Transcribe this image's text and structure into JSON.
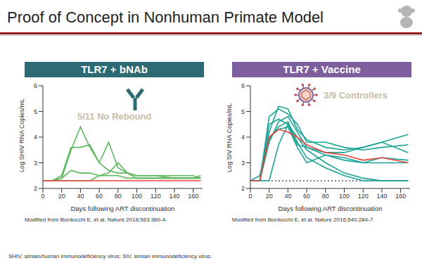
{
  "title": "Proof of Concept in Nonhuman Primate Model",
  "footnote": "SHIV, simian/human immunodeficiency virus; SIV, simian immunodeficiency virus.",
  "chart_data": [
    {
      "type": "line",
      "title": "TLR7 + bNAb",
      "annotation": "5/11 No Rebound",
      "source": "Modified from Borducchi E, et al. Nature 2018;563:360-4.",
      "x_label": "Days following ART discontinuation",
      "y_label": "Log SHIV RNA Copies/mL",
      "x": [
        0,
        10,
        20,
        30,
        40,
        50,
        60,
        70,
        80,
        90,
        100,
        120,
        140,
        160,
        168
      ],
      "xlim": [
        0,
        170
      ],
      "xticks": [
        0,
        20,
        40,
        60,
        80,
        100,
        120,
        140,
        160
      ],
      "ylim": [
        2,
        6
      ],
      "yticks": [
        2,
        3,
        4,
        5,
        6
      ],
      "series": [
        {
          "color": "#5cb85c",
          "values": [
            2.3,
            2.3,
            2.4,
            3.5,
            4.4,
            3.6,
            3.0,
            2.7,
            2.6,
            2.6,
            2.5,
            2.5,
            2.5,
            2.5,
            2.4
          ]
        },
        {
          "color": "#5cb85c",
          "values": [
            2.3,
            2.3,
            2.5,
            3.6,
            3.6,
            3.7,
            3.0,
            3.8,
            2.8,
            2.6,
            2.5,
            2.5,
            2.4,
            2.4,
            2.5
          ]
        },
        {
          "color": "#5cb85c",
          "values": [
            2.3,
            2.3,
            2.3,
            2.3,
            2.3,
            2.3,
            2.5,
            2.6,
            3.0,
            2.6,
            2.4,
            2.4,
            2.4,
            2.4,
            2.4
          ]
        },
        {
          "color": "#5cb85c",
          "values": [
            2.3,
            2.3,
            2.4,
            2.7,
            2.6,
            2.6,
            2.5,
            2.5,
            2.5,
            2.4,
            2.4,
            2.4,
            2.4,
            2.4,
            2.4
          ]
        },
        {
          "color": "#e8433b",
          "values": [
            2.3,
            2.3,
            2.3,
            2.3,
            2.3,
            2.3,
            2.3,
            2.3,
            2.3,
            2.3,
            2.3,
            2.3,
            2.3,
            2.3,
            2.3
          ]
        }
      ]
    },
    {
      "type": "line",
      "title": "TLR7 + Vaccine",
      "annotation": "3/9 Controllers",
      "source": "Modified from Borducchi E, et al. Nature 2016;540:284-7.",
      "x_label": "Days following ART discontinuation",
      "y_label": "Log SIV RNA Copies/mL",
      "x": [
        0,
        10,
        20,
        30,
        40,
        50,
        60,
        80,
        100,
        120,
        140,
        168
      ],
      "xlim": [
        0,
        170
      ],
      "xticks": [
        0,
        20,
        40,
        60,
        80,
        100,
        120,
        140,
        160
      ],
      "ylim": [
        2,
        6
      ],
      "yticks": [
        2,
        3,
        4,
        5,
        6
      ],
      "series": [
        {
          "color": "#333333",
          "line_style": "dotted",
          "values": [
            2.3,
            2.3,
            2.3,
            2.3,
            2.3,
            2.3,
            2.3,
            2.3,
            2.3,
            2.3,
            2.3,
            2.3
          ]
        },
        {
          "color": "#1aa396",
          "values": [
            2.3,
            2.3,
            4.2,
            5.2,
            5.1,
            4.3,
            3.9,
            3.6,
            3.5,
            3.6,
            3.8,
            4.1
          ]
        },
        {
          "color": "#1aa396",
          "values": [
            2.3,
            2.3,
            4.8,
            5.1,
            4.9,
            4.5,
            3.8,
            3.8,
            3.6,
            3.5,
            3.6,
            3.7
          ]
        },
        {
          "color": "#1aa396",
          "values": [
            2.3,
            2.3,
            3.8,
            4.6,
            4.8,
            4.2,
            3.6,
            3.3,
            3.2,
            3.0,
            3.2,
            3.1
          ]
        },
        {
          "color": "#1aa396",
          "values": [
            2.3,
            2.3,
            4.5,
            4.7,
            4.5,
            4.0,
            3.5,
            3.0,
            2.6,
            2.4,
            2.3,
            2.3
          ]
        },
        {
          "color": "#1aa396",
          "values": [
            2.3,
            2.3,
            3.9,
            4.4,
            4.6,
            3.8,
            3.2,
            2.8,
            2.5,
            2.3,
            2.3,
            2.3
          ]
        },
        {
          "color": "#1aa396",
          "values": [
            2.3,
            2.5,
            4.0,
            4.3,
            4.4,
            3.6,
            3.0,
            3.3,
            3.1,
            3.0,
            3.0,
            3.0
          ]
        },
        {
          "color": "#1aa396",
          "values": [
            2.3,
            2.3,
            2.3,
            3.7,
            4.5,
            3.7,
            3.6,
            3.4,
            3.4,
            3.6,
            3.8,
            3.4
          ]
        },
        {
          "color": "#e8433b",
          "values": [
            2.3,
            2.3,
            4.0,
            4.3,
            4.2,
            4.0,
            3.7,
            3.4,
            3.3,
            3.1,
            3.2,
            3.0
          ]
        }
      ]
    }
  ]
}
